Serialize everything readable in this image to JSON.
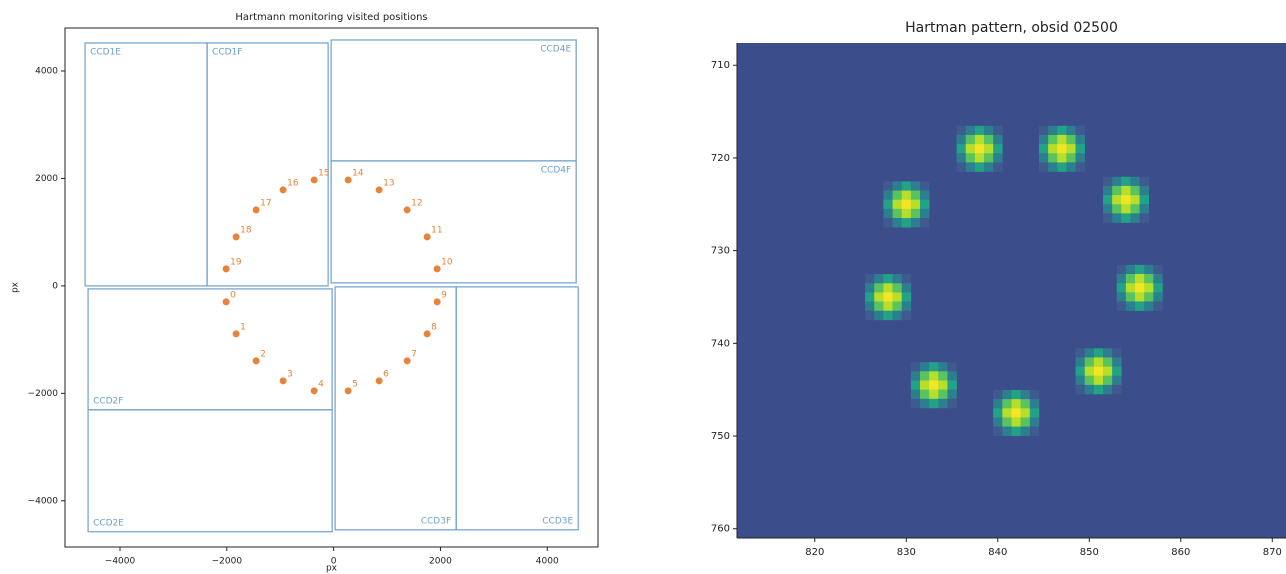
{
  "chart_data": [
    {
      "type": "scatter",
      "title": "Hartmann monitoring visited positions",
      "x_label": "px",
      "y_label": "px",
      "xlim": [
        -5030,
        4950
      ],
      "ylim": [
        -4860,
        4800
      ],
      "xticks": [
        {
          "value": -4000,
          "label": "−4000"
        },
        {
          "value": -2000,
          "label": "−2000"
        },
        0,
        2000,
        4000
      ],
      "yticks": [
        {
          "value": -4000,
          "label": "−4000"
        },
        {
          "value": -2000,
          "label": "−2000"
        },
        0,
        2000,
        4000
      ],
      "rect_color": "#6fa0cc",
      "rects": [
        {
          "label": "CCD1E",
          "x0": -4654,
          "x1": -2370,
          "y0": 0,
          "y1": 4521
        },
        {
          "label": "CCD1F",
          "x0": -2370,
          "x1": -103,
          "y0": 0,
          "y1": 4521
        },
        {
          "label": "CCD4E",
          "x0": -47,
          "x1": 4541,
          "y0": 2326,
          "y1": 4577
        },
        {
          "label": "CCD4F",
          "x0": -47,
          "x1": 4541,
          "y0": 56,
          "y1": 2326
        },
        {
          "label": "CCD2F",
          "x0": -4598,
          "x1": -28,
          "y0": -2307,
          "y1": -56
        },
        {
          "label": "CCD2E",
          "x0": -4598,
          "x1": -28,
          "y0": -4577,
          "y1": -2307
        },
        {
          "label": "CCD3F",
          "x0": 28,
          "x1": 2294,
          "y0": -4540,
          "y1": -19
        },
        {
          "label": "CCD3E",
          "x0": 2294,
          "x1": 4579,
          "y0": -4540,
          "y1": -19
        }
      ],
      "series": [
        {
          "color": "#e8833a",
          "labels": [
            "0",
            "1",
            "2",
            "3",
            "4",
            "5",
            "6",
            "7",
            "8",
            "9",
            "10",
            "11",
            "12",
            "13",
            "14",
            "15",
            "16",
            "17",
            "18",
            "19"
          ],
          "x": [
            -2013,
            -1826,
            -1451,
            -946,
            -365,
            272,
            852,
            1376,
            1751,
            1938,
            1938,
            1751,
            1376,
            852,
            272,
            -365,
            -946,
            -1451,
            -1826,
            -2013
          ],
          "values": [
            -298,
            -893,
            -1395,
            -1767,
            -1953,
            -1953,
            -1767,
            -1395,
            -893,
            -298,
            316,
            912,
            1414,
            1786,
            1972,
            1972,
            1786,
            1414,
            912,
            316
          ]
        }
      ]
    },
    {
      "type": "image",
      "title": "Hartman pattern, obsid 02500",
      "background": "#3c4d8c",
      "xlim": [
        811.5,
        871.5
      ],
      "ylim": [
        761,
        707.6
      ],
      "xticks": [
        820,
        830,
        840,
        850,
        860,
        870
      ],
      "yticks": [
        710,
        720,
        730,
        740,
        750,
        760
      ],
      "spots": {
        "x": [
          838,
          847,
          830,
          854,
          828,
          855.5,
          833,
          851,
          842
        ],
        "y": [
          719,
          719,
          725,
          724.5,
          735,
          734,
          744.5,
          743,
          747.5
        ]
      }
    }
  ]
}
